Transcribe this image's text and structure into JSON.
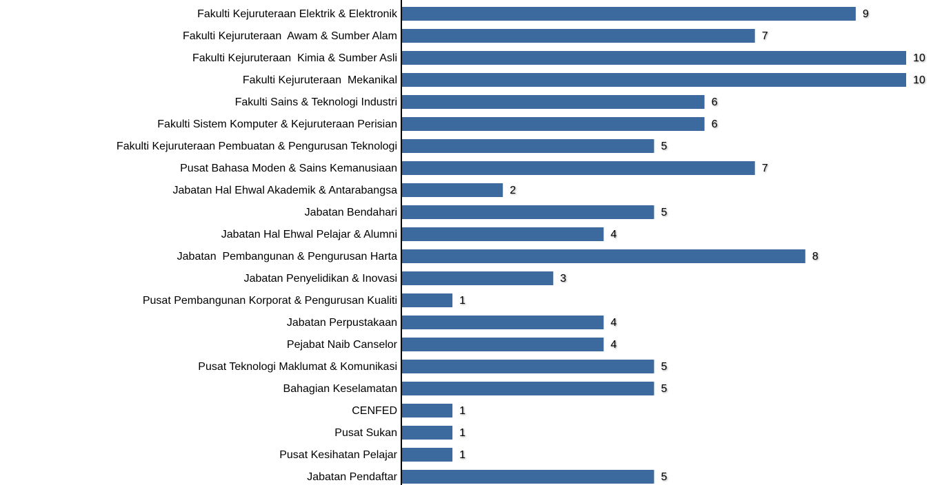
{
  "chart_data": {
    "type": "bar",
    "orientation": "horizontal",
    "categories": [
      "Fakulti Kejuruteraan Elektrik & Elektronik",
      "Fakulti Kejuruteraan  Awam & Sumber Alam",
      "Fakulti Kejuruteraan  Kimia & Sumber Asli",
      "Fakulti Kejuruteraan  Mekanikal",
      "Fakulti Sains & Teknologi Industri",
      "Fakulti Sistem Komputer & Kejuruteraan Perisian",
      "Fakulti Kejuruteraan Pembuatan & Pengurusan Teknologi",
      "Pusat Bahasa Moden & Sains Kemanusiaan",
      "Jabatan Hal Ehwal Akademik & Antarabangsa",
      "Jabatan Bendahari",
      "Jabatan Hal Ehwal Pelajar & Alumni",
      "Jabatan  Pembangunan & Pengurusan Harta",
      "Jabatan Penyelidikan & Inovasi",
      "Pusat Pembangunan Korporat & Pengurusan Kualiti",
      "Jabatan Perpustakaan",
      "Pejabat Naib Canselor",
      "Pusat Teknologi Maklumat & Komunikasi",
      "Bahagian Keselamatan",
      "CENFED",
      "Pusat Sukan",
      "Pusat Kesihatan Pelajar",
      "Jabatan Pendaftar"
    ],
    "values": [
      9,
      7,
      10,
      10,
      6,
      6,
      5,
      7,
      2,
      5,
      4,
      8,
      3,
      1,
      4,
      4,
      5,
      5,
      1,
      1,
      1,
      5
    ],
    "color": "#3d6a9e",
    "xlim": [
      0,
      10
    ]
  }
}
